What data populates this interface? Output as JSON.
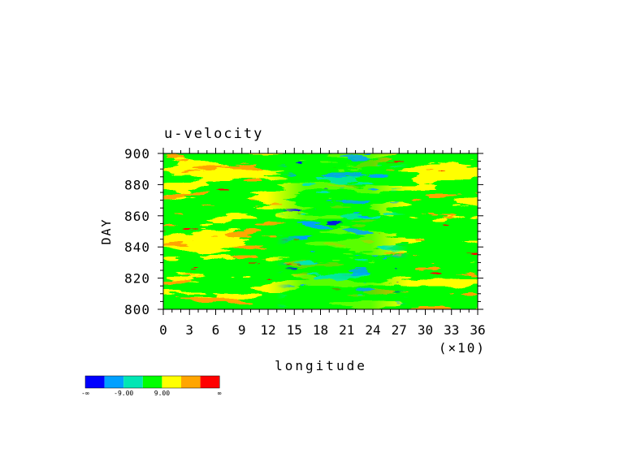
{
  "chart_data": {
    "type": "heatmap",
    "title": "u-velocity",
    "xlabel": "longitude",
    "ylabel": "DAY",
    "x_scale_note": "(×10)",
    "xlim": [
      0,
      36
    ],
    "ylim": [
      800,
      900
    ],
    "x_ticks": [
      "0",
      "3",
      "6",
      "9",
      "12",
      "15",
      "18",
      "21",
      "24",
      "27",
      "30",
      "33",
      "36"
    ],
    "y_ticks": [
      "800",
      "820",
      "840",
      "860",
      "880",
      "900"
    ],
    "levels": {
      "colors": [
        "#0000ff",
        "#00a0ff",
        "#00e6b4",
        "#00ff00",
        "#ffff00",
        "#ffa500",
        "#ff0000"
      ],
      "labels": [
        "-∞",
        "-9.00",
        "9.00",
        "∞"
      ]
    },
    "field_description": "Hovmöller diagram of u-velocity: zonally elongated streaks; mostly positive (yellow/orange/red) in the west and east, weaker/negative (cyan/blue) band between longitude ~15 and ~28 (×10)."
  }
}
